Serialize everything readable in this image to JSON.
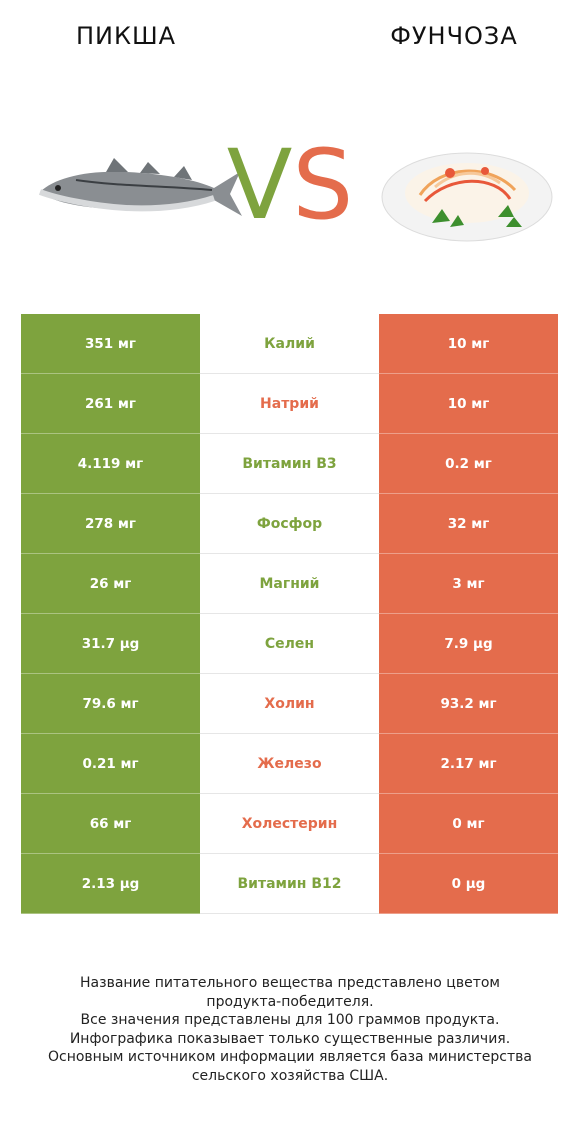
{
  "titles": {
    "left": "ПИКША",
    "right": "ФУНЧОЗА"
  },
  "vs": {
    "v": "V",
    "s": "S"
  },
  "colors": {
    "left_winner": "#7ea33e",
    "right_winner": "#e46c4c"
  },
  "rows": [
    {
      "left": "351 мг",
      "nutrient": "Калий",
      "right": "10 мг",
      "winner": "left"
    },
    {
      "left": "261 мг",
      "nutrient": "Натрий",
      "right": "10 мг",
      "winner": "right"
    },
    {
      "left": "4.119 мг",
      "nutrient": "Витамин B3",
      "right": "0.2 мг",
      "winner": "left"
    },
    {
      "left": "278 мг",
      "nutrient": "Фосфор",
      "right": "32 мг",
      "winner": "left"
    },
    {
      "left": "26 мг",
      "nutrient": "Магний",
      "right": "3 мг",
      "winner": "left"
    },
    {
      "left": "31.7 µg",
      "nutrient": "Селен",
      "right": "7.9 µg",
      "winner": "left"
    },
    {
      "left": "79.6 мг",
      "nutrient": "Холин",
      "right": "93.2 мг",
      "winner": "right"
    },
    {
      "left": "0.21 мг",
      "nutrient": "Железо",
      "right": "2.17 мг",
      "winner": "right"
    },
    {
      "left": "66 мг",
      "nutrient": "Холестерин",
      "right": "0 мг",
      "winner": "right"
    },
    {
      "left": "2.13 µg",
      "nutrient": "Витамин B12",
      "right": "0 µg",
      "winner": "left"
    }
  ],
  "footer": [
    "Название питательного вещества представлено цветом",
    "продукта-победителя.",
    "Все значения представлены для 100 граммов продукта.",
    "Инфографика показывает только существенные различия.",
    "Основным источником информации является база министерства",
    "сельского хозяйства США."
  ]
}
